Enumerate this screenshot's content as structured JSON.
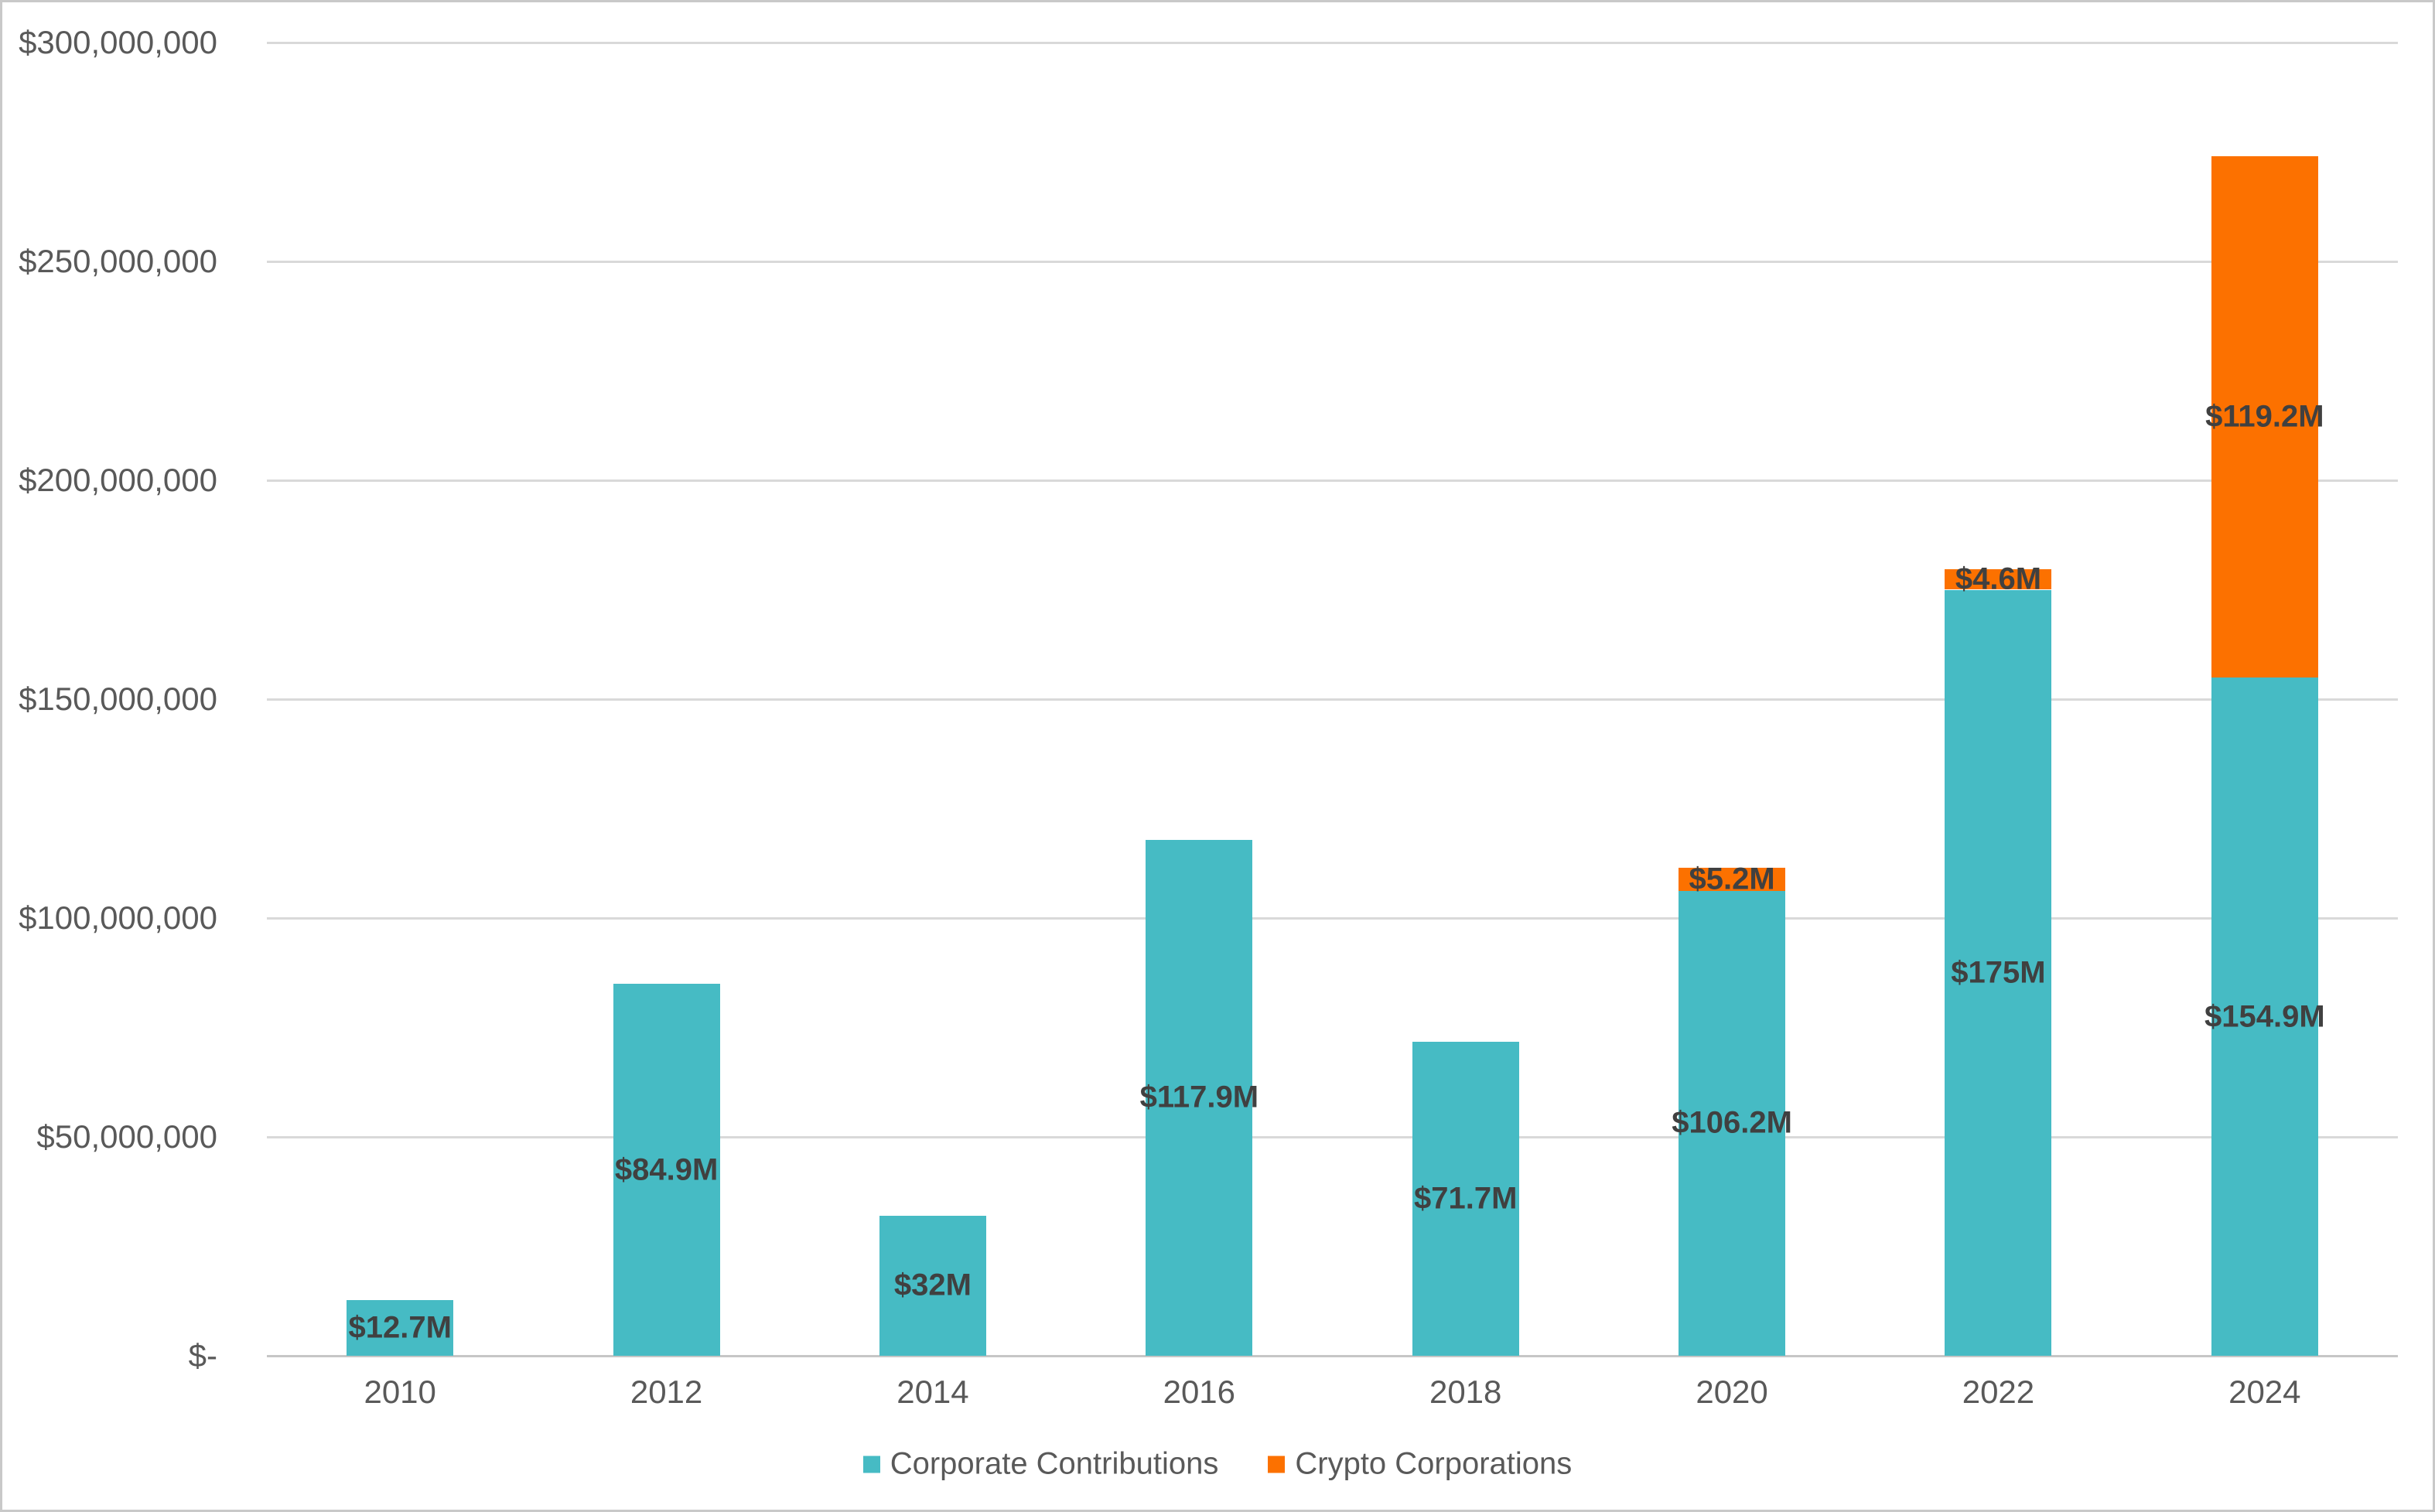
{
  "chart_data": {
    "type": "bar",
    "stacked": true,
    "title": "",
    "categories": [
      "2010",
      "2012",
      "2014",
      "2016",
      "2018",
      "2020",
      "2022",
      "2024"
    ],
    "series": [
      {
        "name": "Corporate Contributions",
        "color": "#46BBC4",
        "values_usd": [
          12700000,
          84900000,
          32000000,
          117900000,
          71700000,
          106200000,
          175000000,
          154900000
        ],
        "data_labels": [
          "$12.7M",
          "$84.9M",
          "$32M",
          "$117.9M",
          "$71.7M",
          "$106.2M",
          "$175M",
          "$154.9M"
        ]
      },
      {
        "name": "Crypto Corporations",
        "color": "#FC7100",
        "values_usd": [
          0,
          0,
          0,
          0,
          0,
          5200000,
          4600000,
          119200000
        ],
        "data_labels": [
          "",
          "",
          "",
          "",
          "",
          "$5.2M",
          "$4.6M",
          "$119.2M"
        ]
      }
    ],
    "y_axis": {
      "min": 0,
      "max": 300000000,
      "tick_interval": 50000000,
      "ticks": [
        {
          "value": 0,
          "label": "$-"
        },
        {
          "value": 50000000,
          "label": "$50,000,000"
        },
        {
          "value": 100000000,
          "label": "$100,000,000"
        },
        {
          "value": 150000000,
          "label": "$150,000,000"
        },
        {
          "value": 200000000,
          "label": "$200,000,000"
        },
        {
          "value": 250000000,
          "label": "$250,000,000"
        },
        {
          "value": 300000000,
          "label": "$300,000,000"
        }
      ]
    },
    "x_axis": {
      "labels": [
        "2010",
        "2012",
        "2014",
        "2016",
        "2018",
        "2020",
        "2022",
        "2024"
      ]
    },
    "legend": {
      "position": "bottom",
      "entries": [
        {
          "label": "Corporate Contributions",
          "color": "#46BBC4"
        },
        {
          "label": "Crypto Corporations",
          "color": "#FC7100"
        }
      ]
    },
    "grid": true,
    "styles": {
      "gridline_color": "#D9D9D9",
      "axis_line_color": "#C6C6C6",
      "axis_text_color": "#595959",
      "data_label_color": "#404040",
      "background": "#FFFFFF",
      "border_color": "#C9C9C9"
    }
  }
}
